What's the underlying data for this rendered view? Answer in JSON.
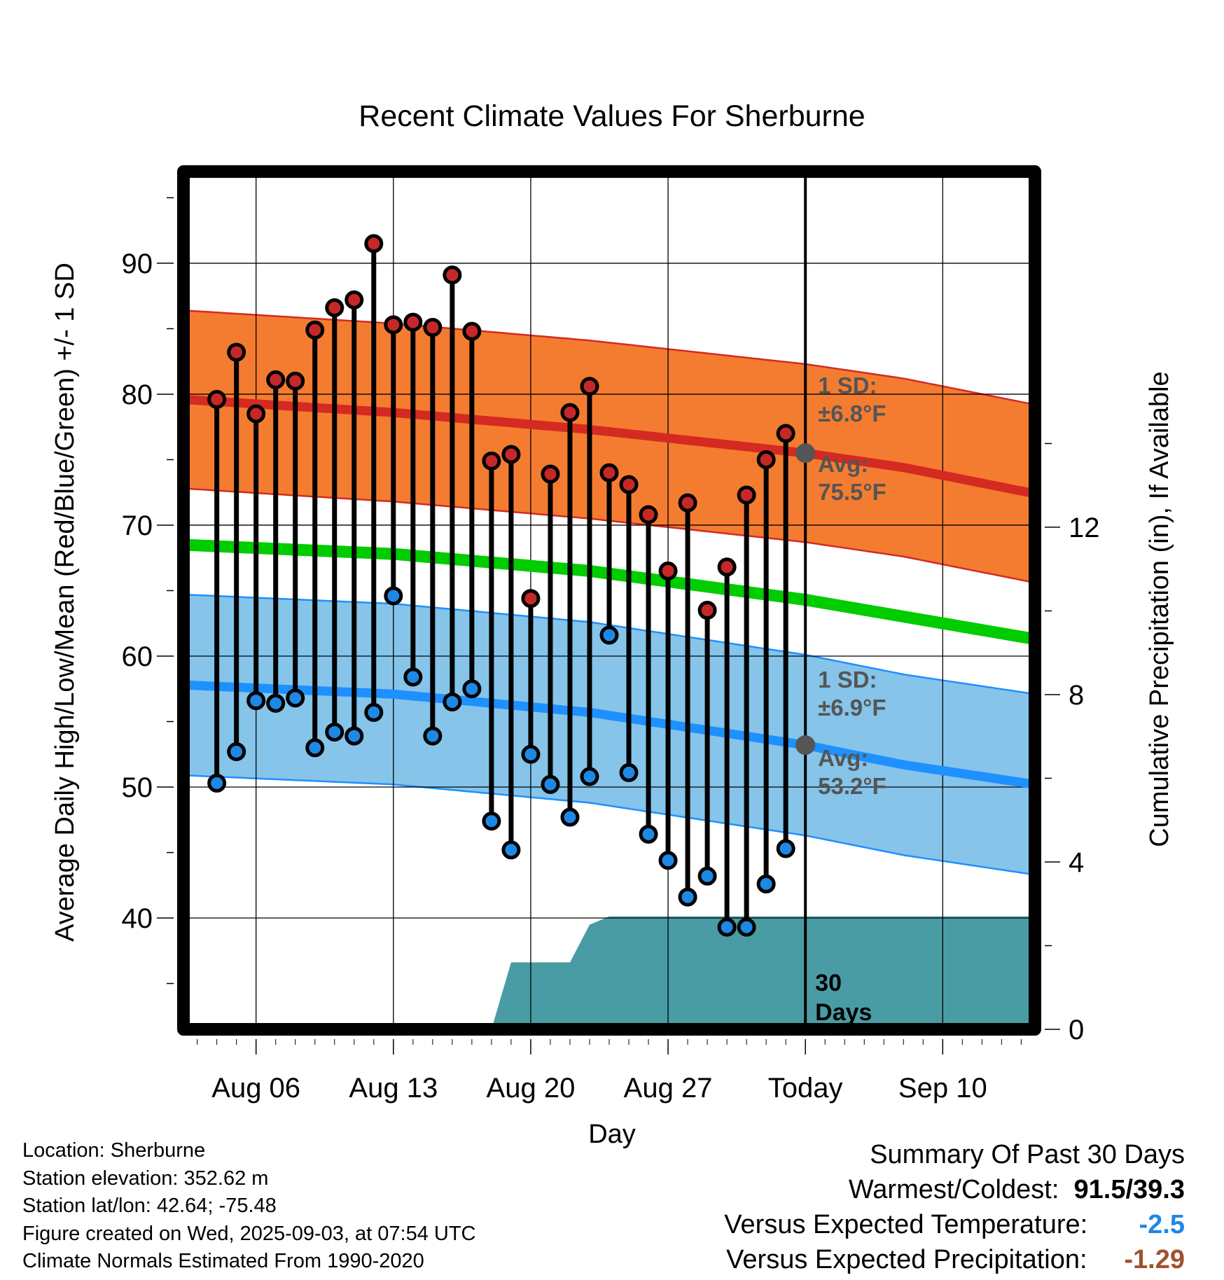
{
  "chart_data": {
    "type": "line",
    "title": "Recent Climate Values For Sherburne",
    "xlabel": "Day",
    "ylabel": "Average Daily High/Low/Mean (Red/Blue/Green) +/- 1 SD",
    "y2label": "Cumulative Precipitation (in), If Available",
    "ylim": [
      31.5,
      97
    ],
    "y2lim": [
      0,
      20.5
    ],
    "xlim": [
      -0.7,
      42.7
    ],
    "x_ticks": [
      {
        "x": 3,
        "label": "Aug 06"
      },
      {
        "x": 10,
        "label": "Aug 13"
      },
      {
        "x": 17,
        "label": "Aug 20"
      },
      {
        "x": 24,
        "label": "Aug 27"
      },
      {
        "x": 31,
        "label": "Today"
      },
      {
        "x": 38,
        "label": "Sep 10"
      }
    ],
    "y_ticks": [
      40,
      50,
      60,
      70,
      80,
      90
    ],
    "y2_ticks": [
      0,
      4,
      8,
      12
    ],
    "today_x": 31,
    "days_label": "30\nDays",
    "highs": [
      79.6,
      83.2,
      78.5,
      81.1,
      81.0,
      84.9,
      86.6,
      87.2,
      91.5,
      85.3,
      85.5,
      85.1,
      89.1,
      84.8,
      74.9,
      75.4,
      64.4,
      73.9,
      78.6,
      80.6,
      74.0,
      73.1,
      70.8,
      66.5,
      71.7,
      63.5,
      66.8,
      72.3,
      75.0,
      77.0
    ],
    "lows": [
      50.3,
      52.7,
      56.6,
      56.4,
      56.8,
      53.0,
      54.2,
      53.9,
      55.7,
      64.6,
      58.4,
      53.9,
      56.5,
      57.5,
      47.4,
      45.2,
      52.5,
      50.2,
      47.7,
      50.8,
      61.6,
      51.1,
      46.4,
      44.4,
      41.6,
      43.2,
      39.3,
      39.3,
      42.6,
      45.3
    ],
    "normal_high": {
      "x": [
        -0.7,
        10,
        20,
        31,
        36,
        42.7
      ],
      "values": [
        79.6,
        78.6,
        77.3,
        75.5,
        74.4,
        72.4
      ]
    },
    "normal_high_sd": 6.8,
    "normal_low": {
      "x": [
        -0.7,
        10,
        20,
        31,
        36,
        42.7
      ],
      "values": [
        57.8,
        57.1,
        55.7,
        53.2,
        51.7,
        50.2
      ]
    },
    "normal_low_sd": 6.9,
    "normal_mean": {
      "x": [
        -0.7,
        10,
        20,
        31,
        42.7
      ],
      "values": [
        68.5,
        67.8,
        66.5,
        64.3,
        61.3
      ]
    },
    "precip_cumulative": {
      "x": [
        15,
        16,
        17,
        19,
        20,
        21,
        22,
        25,
        42.7
      ],
      "values": [
        0,
        1.6,
        1.6,
        1.6,
        2.5,
        2.7,
        2.7,
        2.7,
        2.7
      ]
    },
    "today_high_avg": {
      "x": 31,
      "y": 75.5
    },
    "today_low_avg": {
      "x": 31,
      "y": 53.2
    },
    "band_labels": {
      "high_sd": [
        "1 SD:",
        "±6.8°F"
      ],
      "high_avg": [
        "Avg:",
        "75.5°F"
      ],
      "low_sd": [
        "1 SD:",
        "±6.9°F"
      ],
      "low_avg": [
        "Avg:",
        "53.2°F"
      ]
    },
    "colors": {
      "high_band": "#f47c30",
      "high_line": "#d42a22",
      "low_band": "#86c4ea",
      "low_line": "#1e90ff",
      "mean_line": "#00cc00",
      "precip": "#4a9ca4",
      "high_marker": "#c62828",
      "low_marker": "#1e88e5",
      "avg_marker": "#555555",
      "versus_temp": "#1e88e5",
      "versus_precip": "#a0522d"
    }
  },
  "footer": {
    "location": "Location: Sherburne",
    "elevation": "Station elevation: 352.62 m",
    "latlon": "Station lat/lon: 42.64; -75.48",
    "created": "Figure created on Wed, 2025-09-03, at 07:54 UTC",
    "normals": "Climate Normals Estimated From 1990-2020"
  },
  "summary": {
    "heading": "Summary Of Past 30 Days",
    "warmest_label": "Warmest/Coldest:",
    "warmest_value": "91.5/39.3",
    "temp_label": "Versus Expected Temperature:",
    "temp_value": "-2.5",
    "precip_label": "Versus Expected Precipitation:",
    "precip_value": "-1.29"
  }
}
